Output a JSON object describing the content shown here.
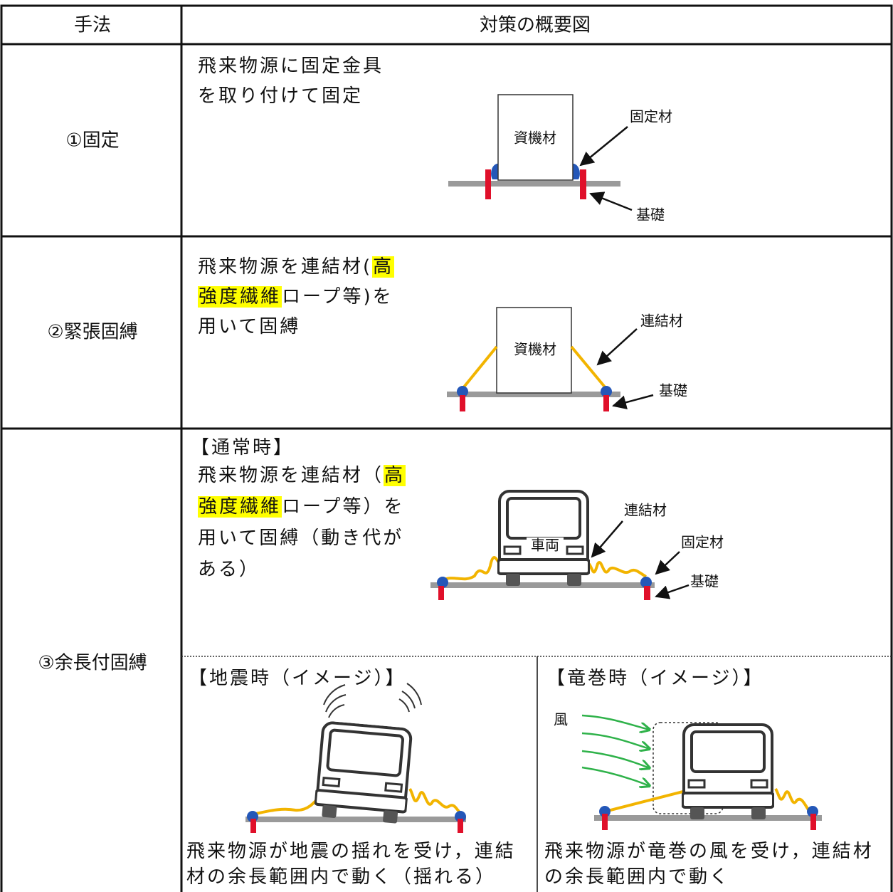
{
  "header": {
    "method": "手法",
    "overview": "対策の概要図"
  },
  "rows": [
    {
      "method": "①固定",
      "description": [
        [
          "飛来物源に固定金具"
        ],
        [
          "を取り付けて固定"
        ]
      ],
      "labels": {
        "material": "資機材",
        "fixture": "固定材",
        "foundation": "基礎"
      }
    },
    {
      "method": "②緊張固縛",
      "description": [
        [
          "飛来物源を連結材(",
          {
            "text": "高",
            "highlight": "#ffff00"
          }
        ],
        [
          {
            "text": "強度繊維",
            "highlight": "#ffff00"
          },
          "ロープ等)を"
        ],
        [
          "用いて固縛"
        ]
      ],
      "labels": {
        "material": "資機材",
        "connector": "連結材",
        "foundation": "基礎"
      }
    },
    {
      "method": "③余長付固縛",
      "normal": {
        "heading": "【通常時】",
        "description": [
          [
            "飛来物源を連結材（",
            {
              "text": "高",
              "highlight": "#ffff00"
            }
          ],
          [
            {
              "text": "強度繊維",
              "highlight": "#ffff00"
            },
            "ロープ等）を"
          ],
          [
            "用いて固縛（動き代が"
          ],
          [
            "ある）"
          ]
        ],
        "labels": {
          "vehicle": "車両",
          "connector": "連結材",
          "fixture": "固定材",
          "foundation": "基礎"
        }
      },
      "earthquake": {
        "heading": "【地震時（イメージ）】",
        "caption": [
          [
            "飛来物源が地震の揺れを受け，連結"
          ],
          [
            "材の余長範囲内で動く（揺れる）"
          ]
        ]
      },
      "tornado": {
        "heading": "【竜巻時（イメージ）】",
        "wind": "風",
        "caption": [
          [
            "飛来物源が竜巻の風を受け，連結材"
          ],
          [
            "の余長範囲内で動く"
          ]
        ]
      }
    }
  ]
}
